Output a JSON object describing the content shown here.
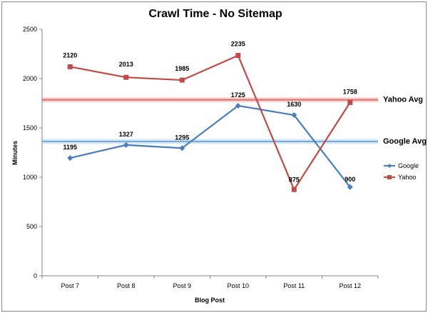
{
  "chart_data": {
    "type": "line",
    "title": "Crawl Time - No Sitemap",
    "xlabel": "Blog Post",
    "ylabel": "Minutes",
    "categories": [
      "Post 7",
      "Post 8",
      "Post 9",
      "Post 10",
      "Post 11",
      "Post 12"
    ],
    "ylim": [
      0,
      2500
    ],
    "yticks": [
      0,
      500,
      1000,
      1500,
      2000,
      2500
    ],
    "grid": false,
    "legend_position": "right",
    "series": [
      {
        "name": "Google",
        "color": "#4a7ebb",
        "marker": "diamond",
        "values": [
          1195,
          1327,
          1295,
          1725,
          1630,
          900
        ],
        "labels": [
          "1195",
          "1327",
          "1295",
          "1725",
          "1630",
          "900"
        ]
      },
      {
        "name": "Yahoo",
        "color": "#be4b48",
        "marker": "square",
        "values": [
          2120,
          2013,
          1985,
          2235,
          875,
          1758
        ],
        "labels": [
          "2120",
          "2013",
          "1985",
          "2235",
          "875",
          "1758"
        ]
      }
    ],
    "reference_lines": [
      {
        "label": "Yahoo Avg",
        "value": 1785,
        "color": "#e06666"
      },
      {
        "label": "Google Avg",
        "value": 1362,
        "color": "#6fa8dc"
      }
    ]
  }
}
